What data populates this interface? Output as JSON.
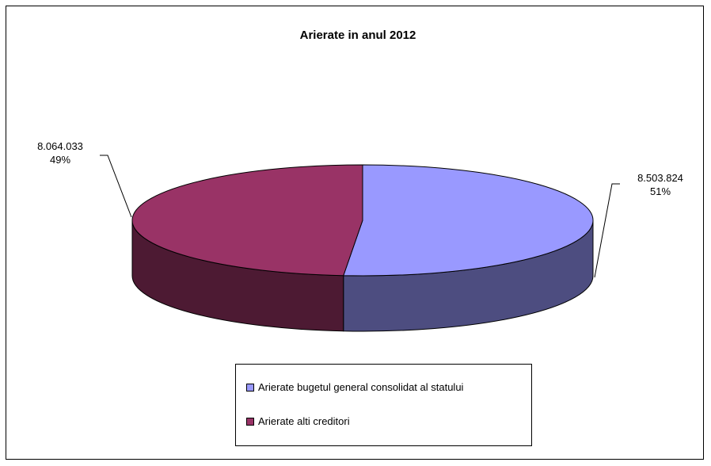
{
  "chart_data": {
    "type": "pie",
    "title": "Arierate in anul 2012",
    "slices": [
      {
        "name": "Arierate bugetul general consolidat al statului",
        "value": 8503824,
        "value_label": "8.503.824",
        "percent_label": "51%",
        "top_color": "#9999FF",
        "side_color": "#4D4D80"
      },
      {
        "name": "Arierate alti creditori",
        "value": 8064033,
        "value_label": "8.064.033",
        "percent_label": "49%",
        "top_color": "#993366",
        "side_color": "#4D1A33"
      }
    ],
    "legend_position": "bottom",
    "style": "3d"
  }
}
